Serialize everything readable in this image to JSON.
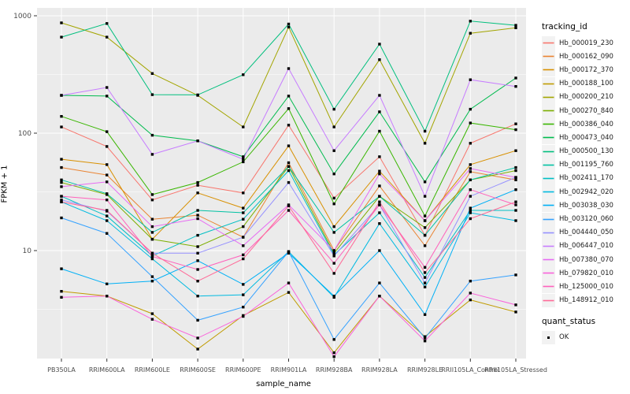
{
  "chart_data": {
    "type": "line",
    "title": "",
    "xlabel": "sample_name",
    "ylabel": "FPKM + 1",
    "yscale": "log10",
    "ylim": [
      1.1,
      1100
    ],
    "yticks": [
      10,
      100,
      1000
    ],
    "grid": "on",
    "legend_title": "tracking_id",
    "legend_position": "right",
    "marker": {
      "legend_title": "quant_status",
      "label": "OK",
      "color": "#000000"
    },
    "panel_color": "#EBEBEB",
    "gridline_color": "#FFFFFF",
    "axis_text_color": "#4D4D4D",
    "x": [
      "PB350LA",
      "RRIM600LA",
      "RRIM600LE",
      "RRIM600SE",
      "RRIM600PE",
      "RRIM901LA",
      "RRIM928BA",
      "RRIM928LA",
      "RRIM928LE",
      "RRII105LA_Control",
      "RRII105LA_Stressed"
    ],
    "series": [
      {
        "name": "Hb_000019_230",
        "color": "#F8766D",
        "values": [
          113,
          77,
          27,
          36,
          31,
          117,
          28,
          63,
          13.5,
          82,
          120
        ]
      },
      {
        "name": "Hb_000162_090",
        "color": "#EA8331",
        "values": [
          51,
          44,
          18.5,
          20,
          13,
          56,
          10,
          35.5,
          11,
          47,
          40
        ]
      },
      {
        "name": "Hb_000172_370",
        "color": "#D89000",
        "values": [
          60,
          54,
          12.5,
          31,
          23,
          78,
          16,
          47.5,
          18,
          54,
          71
        ]
      },
      {
        "name": "Hb_000188_100",
        "color": "#C09B00",
        "values": [
          4.5,
          4.1,
          2.9,
          1.45,
          2.8,
          4.4,
          1.35,
          4.1,
          1.85,
          3.8,
          3.0
        ]
      },
      {
        "name": "Hb_000200_210",
        "color": "#A3A500",
        "values": [
          870,
          658,
          322,
          210,
          113,
          800,
          113,
          423,
          82,
          710,
          790
        ]
      },
      {
        "name": "Hb_000270_840",
        "color": "#7CAE00",
        "values": [
          38,
          30,
          12.5,
          10.8,
          16,
          52,
          9.5,
          29,
          15.7,
          40,
          48
        ]
      },
      {
        "name": "Hb_000386_040",
        "color": "#39B600",
        "values": [
          139,
          103,
          30,
          38,
          57,
          162,
          25,
          104,
          19.7,
          122,
          107
        ]
      },
      {
        "name": "Hb_000473_040",
        "color": "#00BB4E",
        "values": [
          210,
          207,
          96,
          86,
          63,
          207,
          45,
          152,
          38.5,
          160,
          295
        ]
      },
      {
        "name": "Hb_000500_130",
        "color": "#00BF7D",
        "values": [
          658,
          860,
          213,
          212,
          315,
          850,
          160,
          573,
          104,
          900,
          830
        ]
      },
      {
        "name": "Hb_001195_760",
        "color": "#00C1A3",
        "values": [
          40,
          30.5,
          14.3,
          22,
          21,
          52,
          14.3,
          29,
          13.5,
          40,
          51
        ]
      },
      {
        "name": "Hb_002411_170",
        "color": "#00BFC4",
        "values": [
          29,
          19.7,
          9.0,
          13.5,
          18.5,
          48,
          9.2,
          21,
          5.9,
          22,
          22
        ]
      },
      {
        "name": "Hb_002942_020",
        "color": "#00BAE0",
        "values": [
          26,
          18,
          8.5,
          4.1,
          4.2,
          9.8,
          4.0,
          17,
          4.9,
          21,
          18
        ]
      },
      {
        "name": "Hb_003038_030",
        "color": "#00B0F6",
        "values": [
          7,
          5.2,
          5.5,
          8.2,
          5.15,
          9.5,
          4.1,
          10,
          2.85,
          23,
          33
        ]
      },
      {
        "name": "Hb_003120_060",
        "color": "#35A2FF",
        "values": [
          19,
          14,
          6.0,
          2.55,
          3.3,
          9.8,
          1.75,
          5.3,
          1.8,
          5.5,
          6.2
        ]
      },
      {
        "name": "Hb_004440_050",
        "color": "#9590FF",
        "values": [
          27,
          21.7,
          9.5,
          9.5,
          13,
          38,
          9.0,
          24.5,
          5.3,
          29,
          42
        ]
      },
      {
        "name": "Hb_006447_010",
        "color": "#C77CFF",
        "values": [
          210,
          245,
          66,
          86,
          60,
          355,
          71,
          210,
          29,
          285,
          250
        ]
      },
      {
        "name": "Hb_007380_070",
        "color": "#E76BF3",
        "values": [
          35,
          38.5,
          16,
          18.7,
          11,
          24.5,
          10,
          45,
          18,
          50,
          42
        ]
      },
      {
        "name": "Hb_079820_010",
        "color": "#FA62DB",
        "values": [
          4.0,
          4.1,
          2.6,
          1.8,
          2.75,
          5.3,
          1.25,
          4.1,
          1.7,
          4.35,
          3.45
        ]
      },
      {
        "name": "Hb_125000_010",
        "color": "#FF62BC",
        "values": [
          29,
          27,
          8.9,
          6.9,
          9.2,
          22,
          7.8,
          24.5,
          7.2,
          33,
          24.5
        ]
      },
      {
        "name": "Hb_148912_010",
        "color": "#FF6A98",
        "values": [
          26,
          22,
          9.5,
          5.5,
          8.5,
          24,
          6.4,
          26,
          6.5,
          18.7,
          26
        ]
      }
    ]
  }
}
